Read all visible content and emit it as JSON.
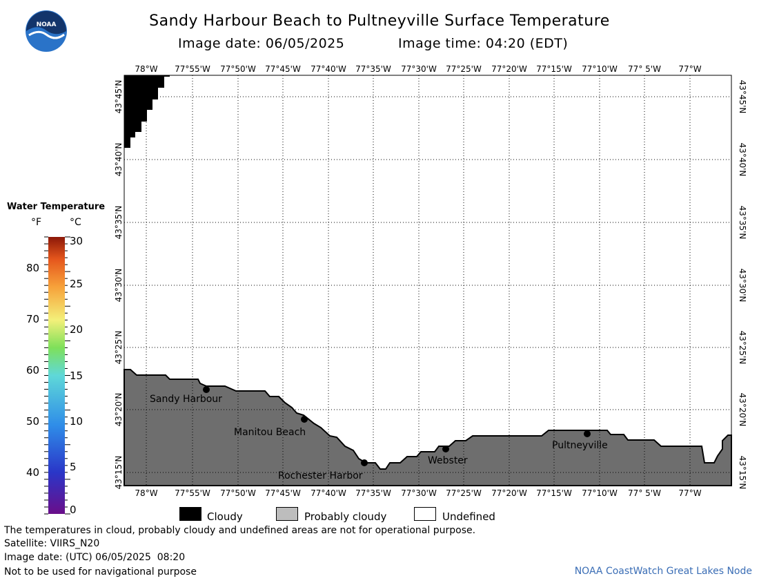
{
  "header": {
    "title": "Sandy Harbour Beach to Pultneyville Surface Temperature",
    "image_date_label": "Image date: 06/05/2025",
    "image_time_label": "Image time: 04:20 (EDT)"
  },
  "logo": {
    "text": "NOAA"
  },
  "map": {
    "lon_labels": [
      "78°W",
      "77°55'W",
      "77°50'W",
      "77°45'W",
      "77°40'W",
      "77°35'W",
      "77°30'W",
      "77°25'W",
      "77°20'W",
      "77°15'W",
      "77°10'W",
      "77° 5'W",
      "77°W"
    ],
    "lat_labels": [
      "43°45'N",
      "43°40'N",
      "43°35'N",
      "43°30'N",
      "43°25'N",
      "43°20'N",
      "43°15'N"
    ],
    "places": [
      {
        "name": "Sandy Harbour"
      },
      {
        "name": "Manitou Beach"
      },
      {
        "name": "Rochester Harbor"
      },
      {
        "name": "Webster"
      },
      {
        "name": "Pultneyville"
      }
    ],
    "colors": {
      "land": "#6e6e6e",
      "cloud": "#000000",
      "water_undefined": "#ffffff"
    }
  },
  "legend": {
    "title": "Water Temperature",
    "unit_f": "°F",
    "unit_c": "°C",
    "f_ticks": [
      "80",
      "70",
      "60",
      "50",
      "40"
    ],
    "c_ticks": [
      "30",
      "25",
      "20",
      "15",
      "10",
      "5",
      "0"
    ]
  },
  "key": [
    {
      "label": "Cloudy",
      "color": "#000000"
    },
    {
      "label": "Probably cloudy",
      "color": "#bdbdbd"
    },
    {
      "label": "Undefined",
      "color": "#ffffff"
    }
  ],
  "footer": {
    "line1": "The temperatures in cloud, probably cloudy and undefined areas are not for operational purpose.",
    "line2": "Satellite: VIIRS_N20",
    "line3": "Image date: (UTC) 06/05/2025  08:20",
    "line4": "Not to be used for navigational purpose",
    "credit": "NOAA CoastWatch Great Lakes Node"
  }
}
